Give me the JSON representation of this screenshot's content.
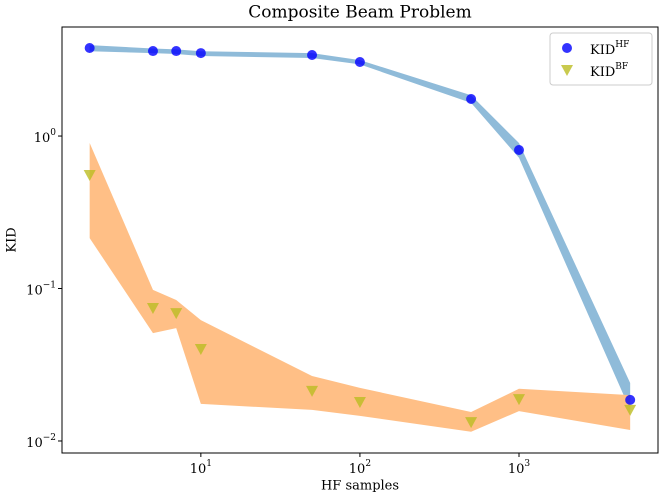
{
  "chart_data": {
    "type": "scatter",
    "title": "Composite Beam Problem",
    "xlabel": "HF samples",
    "ylabel": "KID",
    "xscale": "log",
    "yscale": "log",
    "xlim": [
      1.34,
      7480
    ],
    "ylim": [
      0.00834,
      5.19
    ],
    "xticks": [
      {
        "value": 10,
        "label": "10",
        "exponent": "1"
      },
      {
        "value": 100,
        "label": "10",
        "exponent": "2"
      },
      {
        "value": 1000,
        "label": "10",
        "exponent": "3"
      }
    ],
    "yticks": [
      {
        "value": 0.01,
        "label": "10",
        "exponent": "−2"
      },
      {
        "value": 0.1,
        "label": "10",
        "exponent": "−1"
      },
      {
        "value": 1,
        "label": "10",
        "exponent": "0"
      }
    ],
    "legend": "upper right",
    "x": [
      2,
      5,
      7,
      10,
      50,
      100,
      500,
      1000,
      5000
    ],
    "series": [
      {
        "name": "KID",
        "superscript": "HF",
        "color": "#0000ff",
        "marker": "circle",
        "band_color": "#8fbbd9",
        "values": [
          3.78,
          3.61,
          3.61,
          3.5,
          3.4,
          3.06,
          1.75,
          0.81,
          0.0186
        ],
        "band_upper": [
          3.95,
          3.75,
          3.7,
          3.6,
          3.5,
          3.15,
          1.85,
          0.9,
          0.024
        ],
        "band_lower": [
          3.6,
          3.5,
          3.45,
          3.35,
          3.25,
          2.95,
          1.65,
          0.72,
          0.016
        ]
      },
      {
        "name": "KID",
        "superscript": "BF",
        "color": "#bcbd22",
        "marker": "triangle-down",
        "band_color": "#ffbf86",
        "values": [
          0.555,
          0.0745,
          0.069,
          0.0401,
          0.0213,
          0.018,
          0.0133,
          0.0188,
          0.016
        ],
        "band_upper": [
          0.9,
          0.098,
          0.084,
          0.062,
          0.0267,
          0.0223,
          0.0155,
          0.022,
          0.02
        ],
        "band_lower": [
          0.214,
          0.051,
          0.055,
          0.0175,
          0.016,
          0.0146,
          0.0115,
          0.0157,
          0.0118
        ]
      }
    ]
  }
}
